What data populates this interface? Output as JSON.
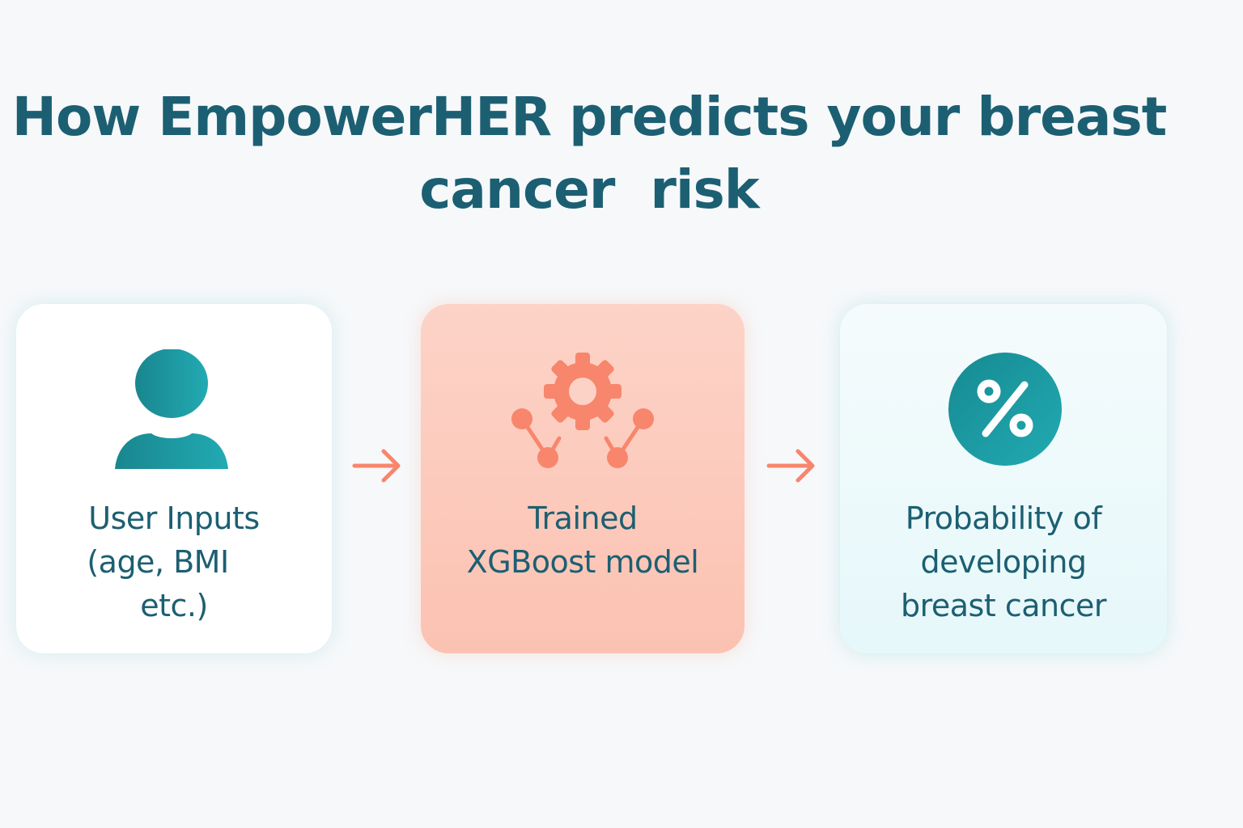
{
  "title": {
    "line1": "How EmpowerHER predicts your breast",
    "line2": "cancer  risk"
  },
  "steps": [
    {
      "icon": "user-icon",
      "label_lines": [
        "User Inputs",
        "(age, BMI",
        "etc.)"
      ]
    },
    {
      "icon": "gear-network-icon",
      "label_lines": [
        "Trained",
        "XGBoost model"
      ]
    },
    {
      "icon": "percent-icon",
      "label_lines": [
        "Probability of",
        "developing",
        "breast cancer"
      ]
    }
  ],
  "colors": {
    "title_text": "#1c5f72",
    "teal_icon": "#1e9fa6",
    "coral_accent": "#f7866c",
    "model_card_bg": "#fdd3c7",
    "output_card_bg": "#e6f8fa"
  }
}
